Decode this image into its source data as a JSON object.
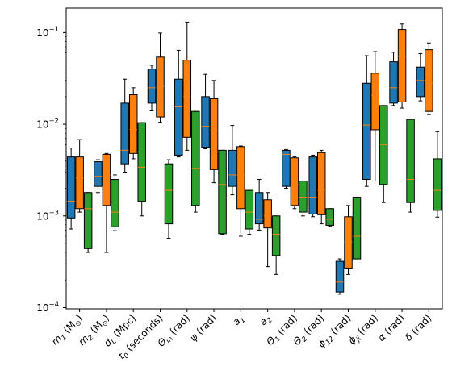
{
  "chart_data": {
    "type": "box",
    "title": "",
    "xlabel": "",
    "ylabel": "",
    "yscale": "log",
    "ylim": [
      9.7e-05,
      0.185
    ],
    "y_tick_labels": [
      {
        "value": 0.0001,
        "base": "10",
        "exp": "−4"
      },
      {
        "value": 0.001,
        "base": "10",
        "exp": "−3"
      },
      {
        "value": 0.01,
        "base": "10",
        "exp": "−2"
      },
      {
        "value": 0.1,
        "base": "10",
        "exp": "−1"
      }
    ],
    "categories": [
      {
        "main": "m",
        "sub": "1",
        "unit": "(M",
        "unit_sub": "⊙",
        "tail": ")"
      },
      {
        "main": "m",
        "sub": "2",
        "unit": "(M",
        "unit_sub": "⊙",
        "tail": ")"
      },
      {
        "main": "d",
        "sub": "L",
        "unit": "(Mpc)",
        "unit_sub": "",
        "tail": ""
      },
      {
        "main": "t",
        "sub": "0",
        "unit": "(seconds)",
        "unit_sub": "",
        "tail": ""
      },
      {
        "main": "Θ",
        "sub": "jn",
        "unit": "(rad)",
        "unit_sub": "",
        "tail": ""
      },
      {
        "main": "ψ",
        "sub": "",
        "unit": "(rad)",
        "unit_sub": "",
        "tail": ""
      },
      {
        "main": "a",
        "sub": "1",
        "unit": "",
        "unit_sub": "",
        "tail": ""
      },
      {
        "main": "a",
        "sub": "2",
        "unit": "",
        "unit_sub": "",
        "tail": ""
      },
      {
        "main": "Θ",
        "sub": "1",
        "unit": "(rad)",
        "unit_sub": "",
        "tail": ""
      },
      {
        "main": "Θ",
        "sub": "2",
        "unit": "(rad)",
        "unit_sub": "",
        "tail": ""
      },
      {
        "main": "ϕ",
        "sub": "12",
        "unit": "(rad)",
        "unit_sub": "",
        "tail": ""
      },
      {
        "main": "ϕ",
        "sub": "jl",
        "unit": "(rad)",
        "unit_sub": "",
        "tail": ""
      },
      {
        "main": "α",
        "sub": "",
        "unit": "(rad)",
        "unit_sub": "",
        "tail": ""
      },
      {
        "main": "δ",
        "sub": "",
        "unit": "(rad)",
        "unit_sub": "",
        "tail": ""
      }
    ],
    "series": [
      {
        "color": "#1f77b4",
        "boxes": [
          {
            "whislo": 0.00072,
            "q1": 0.00095,
            "med": 0.00145,
            "q3": 0.0044,
            "whishi": 0.0055
          },
          {
            "whislo": 0.0018,
            "q1": 0.0021,
            "med": 0.0027,
            "q3": 0.0039,
            "whishi": 0.0041
          },
          {
            "whislo": 0.003,
            "q1": 0.0037,
            "med": 0.0052,
            "q3": 0.017,
            "whishi": 0.031
          },
          {
            "whislo": 0.014,
            "q1": 0.017,
            "med": 0.025,
            "q3": 0.04,
            "whishi": 0.044
          },
          {
            "whislo": 0.0044,
            "q1": 0.0046,
            "med": 0.0155,
            "q3": 0.031,
            "whishi": 0.064
          },
          {
            "whislo": 0.0054,
            "q1": 0.0056,
            "med": 0.0095,
            "q3": 0.02,
            "whishi": 0.035
          },
          {
            "whislo": 0.0017,
            "q1": 0.0021,
            "med": 0.0028,
            "q3": 0.0052,
            "whishi": 0.0097
          },
          {
            "whislo": 0.0007,
            "q1": 0.00082,
            "med": 0.00092,
            "q3": 0.0018,
            "whishi": 0.0025
          },
          {
            "whislo": 0.002,
            "q1": 0.0021,
            "med": 0.0047,
            "q3": 0.0052,
            "whishi": 0.0053
          },
          {
            "whislo": 0.00098,
            "q1": 0.00105,
            "med": 0.0016,
            "q3": 0.0044,
            "whishi": 0.0046
          },
          {
            "whislo": 0.00014,
            "q1": 0.000148,
            "med": 0.00019,
            "q3": 0.00032,
            "whishi": 0.00034
          },
          {
            "whislo": 0.0021,
            "q1": 0.0025,
            "med": 0.0098,
            "q3": 0.028,
            "whishi": 0.056
          },
          {
            "whislo": 0.016,
            "q1": 0.017,
            "med": 0.025,
            "q3": 0.048,
            "whishi": 0.061
          },
          {
            "whislo": 0.018,
            "q1": 0.02,
            "med": 0.03,
            "q3": 0.042,
            "whishi": 0.059
          }
        ]
      },
      {
        "color": "#ff7f0e",
        "boxes": [
          {
            "whislo": 0.0011,
            "q1": 0.0012,
            "med": 0.0026,
            "q3": 0.0044,
            "whishi": 0.0068
          },
          {
            "whislo": 0.0004,
            "q1": 0.0013,
            "med": 0.0028,
            "q3": 0.0047,
            "whishi": 0.0048
          },
          {
            "whislo": 0.0042,
            "q1": 0.0048,
            "med": 0.0088,
            "q3": 0.021,
            "whishi": 0.025
          },
          {
            "whislo": 0.0105,
            "q1": 0.012,
            "med": 0.026,
            "q3": 0.054,
            "whishi": 0.099
          },
          {
            "whislo": 0.0052,
            "q1": 0.0072,
            "med": 0.02,
            "q3": 0.05,
            "whishi": 0.13
          },
          {
            "whislo": 0.0023,
            "q1": 0.0032,
            "med": 0.0085,
            "q3": 0.019,
            "whishi": 0.03
          },
          {
            "whislo": 0.0006,
            "q1": 0.0012,
            "med": 0.0028,
            "q3": 0.0057,
            "whishi": 0.0058
          },
          {
            "whislo": 0.00028,
            "q1": 0.00074,
            "med": 0.001,
            "q3": 0.0015,
            "whishi": 0.0018
          },
          {
            "whislo": 0.0012,
            "q1": 0.0013,
            "med": 0.0022,
            "q3": 0.0043,
            "whishi": 0.0044
          },
          {
            "whislo": 0.00082,
            "q1": 0.00103,
            "med": 0.0019,
            "q3": 0.0049,
            "whishi": 0.0052
          },
          {
            "whislo": 0.00023,
            "q1": 0.00027,
            "med": 0.00052,
            "q3": 0.00098,
            "whishi": 0.0013
          },
          {
            "whislo": 0.0024,
            "q1": 0.0087,
            "med": 0.0205,
            "q3": 0.036,
            "whishi": 0.062
          },
          {
            "whislo": 0.015,
            "q1": 0.0175,
            "med": 0.055,
            "q3": 0.108,
            "whishi": 0.124
          },
          {
            "whislo": 0.0128,
            "q1": 0.0138,
            "med": 0.028,
            "q3": 0.065,
            "whishi": 0.077
          }
        ]
      },
      {
        "color": "#2ca02c",
        "boxes": [
          {
            "whislo": 0.0004,
            "q1": 0.00044,
            "med": 0.0012,
            "q3": 0.0018,
            "whishi": 0.0018
          },
          {
            "whislo": 0.00069,
            "q1": 0.00076,
            "med": 0.0011,
            "q3": 0.0025,
            "whishi": 0.0028
          },
          {
            "whislo": 0.001,
            "q1": 0.00145,
            "med": 0.0034,
            "q3": 0.0104,
            "whishi": 0.0104
          },
          {
            "whislo": 0.00057,
            "q1": 0.00082,
            "med": 0.0019,
            "q3": 0.0037,
            "whishi": 0.0041
          },
          {
            "whislo": 0.0011,
            "q1": 0.0013,
            "med": 0.0033,
            "q3": 0.0138,
            "whishi": 0.0138
          },
          {
            "whislo": 0.00063,
            "q1": 0.00064,
            "med": 0.0022,
            "q3": 0.0052,
            "whishi": 0.0052
          },
          {
            "whislo": 0.00063,
            "q1": 0.00072,
            "med": 0.0011,
            "q3": 0.0019,
            "whishi": 0.0019
          },
          {
            "whislo": 0.00023,
            "q1": 0.00037,
            "med": 0.00063,
            "q3": 0.001,
            "whishi": 0.001
          },
          {
            "whislo": 0.001,
            "q1": 0.0011,
            "med": 0.0016,
            "q3": 0.0024,
            "whishi": 0.0024
          },
          {
            "whislo": 0.00077,
            "q1": 0.00079,
            "med": 0.00092,
            "q3": 0.0012,
            "whishi": 0.0012
          },
          {
            "whislo": 0.00034,
            "q1": 0.00034,
            "med": 0.0006,
            "q3": 0.0016,
            "whishi": 0.0016
          },
          {
            "whislo": 0.0014,
            "q1": 0.0022,
            "med": 0.006,
            "q3": 0.016,
            "whishi": 0.016
          },
          {
            "whislo": 0.0011,
            "q1": 0.0014,
            "med": 0.0025,
            "q3": 0.0113,
            "whishi": 0.0113
          },
          {
            "whislo": 0.00097,
            "q1": 0.00115,
            "med": 0.0019,
            "q3": 0.0042,
            "whishi": 0.0083
          }
        ]
      }
    ],
    "median_color": "#ff7f0e",
    "grid": false,
    "legend": "none"
  }
}
